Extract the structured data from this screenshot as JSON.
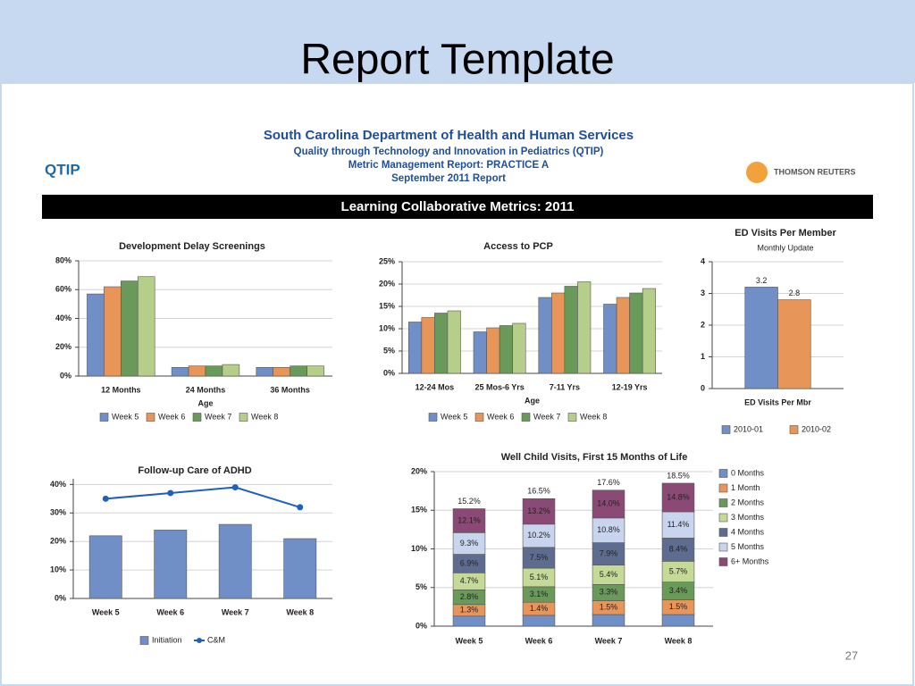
{
  "slide": {
    "title": "Report Template",
    "page_number": "27"
  },
  "report": {
    "agency": "South Carolina Department of Health and Human Services",
    "program": "Quality through Technology and Innovation in Pediatrics (QTIP)",
    "report_name": "Metric Management Report:  PRACTICE A",
    "date": "September 2011 Report",
    "left_logo": "QTIP",
    "right_logo": "THOMSON REUTERS",
    "banner": "Learning Collaborative Metrics: 2011"
  },
  "chart_data": [
    {
      "type": "bar",
      "title": "Development Delay Screenings",
      "x_label": "Age",
      "categories": [
        "12 Months",
        "24 Months",
        "36 Months"
      ],
      "series": [
        {
          "name": "Week 5",
          "color": "#6f8fc6",
          "values": [
            57,
            6,
            6
          ]
        },
        {
          "name": "Week 6",
          "color": "#e8955a",
          "values": [
            62,
            7,
            6
          ]
        },
        {
          "name": "Week 7",
          "color": "#6a9a5a",
          "values": [
            66,
            7,
            7
          ]
        },
        {
          "name": "Week 8",
          "color": "#b5cf8a",
          "values": [
            69,
            8,
            7
          ]
        }
      ],
      "ylim": [
        0,
        80
      ],
      "yticks": [
        {
          "value": 0,
          "label": "0%"
        },
        {
          "value": 20,
          "label": "20%"
        },
        {
          "value": 40,
          "label": "40%"
        },
        {
          "value": 60,
          "label": "60%"
        },
        {
          "value": 80,
          "label": "80%"
        }
      ],
      "grid": true
    },
    {
      "type": "bar",
      "title": "Access to PCP",
      "x_label": "Age",
      "categories": [
        "12-24 Mos",
        "25 Mos-6 Yrs",
        "7-11 Yrs",
        "12-19 Yrs"
      ],
      "series": [
        {
          "name": "Week 5",
          "color": "#6f8fc6",
          "values": [
            11.5,
            9.3,
            17,
            15.5
          ]
        },
        {
          "name": "Week 6",
          "color": "#e8955a",
          "values": [
            12.5,
            10.2,
            18,
            17
          ]
        },
        {
          "name": "Week 7",
          "color": "#6a9a5a",
          "values": [
            13.5,
            10.7,
            19.5,
            18
          ]
        },
        {
          "name": "Week 8",
          "color": "#b5cf8a",
          "values": [
            14,
            11.2,
            20.5,
            19
          ]
        }
      ],
      "ylim": [
        0,
        25
      ],
      "yticks": [
        {
          "value": 0,
          "label": "0%"
        },
        {
          "value": 5,
          "label": "5%"
        },
        {
          "value": 10,
          "label": "10%"
        },
        {
          "value": 15,
          "label": "15%"
        },
        {
          "value": 20,
          "label": "20%"
        },
        {
          "value": 25,
          "label": "25%"
        }
      ],
      "grid": true
    },
    {
      "type": "bar",
      "title": "ED Visits Per Member",
      "subtitle": "Monthly Update",
      "categories": [
        "ED Visits Per Mbr"
      ],
      "series": [
        {
          "name": "2010-01",
          "color": "#6f8fc6",
          "values": [
            3.2
          ]
        },
        {
          "name": "2010-02",
          "color": "#e8955a",
          "values": [
            2.8
          ]
        }
      ],
      "show_values": true,
      "ylim": [
        0,
        4
      ],
      "yticks": [
        0,
        1,
        2,
        3,
        4
      ],
      "grid": true
    },
    {
      "type": "bar",
      "title": "Follow-up Care of ADHD",
      "categories": [
        "Week 5",
        "Week 6",
        "Week 7",
        "Week 8"
      ],
      "series": [
        {
          "name": "Initiation",
          "color": "#6f8fc6",
          "values": [
            22,
            24,
            26,
            21
          ]
        },
        {
          "name": "C&M",
          "type": "line",
          "color": "#1f5fbf",
          "values": [
            35,
            37,
            39,
            32
          ]
        }
      ],
      "ylim": [
        0,
        42
      ],
      "yticks": [
        {
          "value": 0,
          "label": "0%"
        },
        {
          "value": 10,
          "label": "10%"
        },
        {
          "value": 20,
          "label": "20%"
        },
        {
          "value": 30,
          "label": "30%"
        },
        {
          "value": 40,
          "label": "40%"
        }
      ],
      "grid": true
    },
    {
      "type": "stacked",
      "title": "Well Child Visits, First 15 Months of Life",
      "categories": [
        "Week 5",
        "Week 6",
        "Week 7",
        "Week 8"
      ],
      "series": [
        {
          "name": "0 Months",
          "color": "#6f8fc6",
          "values": [
            1.3,
            1.4,
            1.5,
            1.5
          ],
          "cumulative_labels": [
            "1.3%",
            "1.4%",
            "1.5%",
            "1.5%"
          ]
        },
        {
          "name": "1 Month",
          "color": "#e8955a",
          "values": [
            1.5,
            1.7,
            1.8,
            1.9
          ],
          "cumulative_labels": [
            "2.8%",
            "3.1%",
            "3.3%",
            "3.4%"
          ]
        },
        {
          "name": "2 Months",
          "color": "#6a9a5a",
          "values": [
            1.9,
            2.0,
            2.1,
            2.3
          ],
          "cumulative_labels": [
            "4.7%",
            "5.1%",
            "5.4%",
            "5.7%"
          ]
        },
        {
          "name": "3 Months",
          "color": "#c5da96",
          "values": [
            2.2,
            2.4,
            2.5,
            2.7
          ],
          "cumulative_labels": [
            "6.9%",
            "7.5%",
            "7.9%",
            "8.4%"
          ]
        },
        {
          "name": "4 Months",
          "color": "#5e6d8f",
          "values": [
            2.4,
            2.7,
            2.9,
            3.0
          ],
          "cumulative_labels": [
            "9.3%",
            "10.2%",
            "10.8%",
            "11.4%"
          ]
        },
        {
          "name": "5 Months",
          "color": "#c9d5ee",
          "values": [
            2.8,
            3.0,
            3.2,
            3.4
          ],
          "cumulative_labels": [
            "12.1%",
            "13.2%",
            "14.0%",
            "14.8%"
          ]
        },
        {
          "name": "6+ Months",
          "color": "#8b4a76",
          "values": [
            3.1,
            3.3,
            3.6,
            3.7
          ],
          "cumulative_labels": [
            "15.2%",
            "16.5%",
            "17.6%",
            "18.5%"
          ]
        }
      ],
      "ylim": [
        0,
        20
      ],
      "yticks": [
        {
          "value": 0,
          "label": "0%"
        },
        {
          "value": 5,
          "label": "5%"
        },
        {
          "value": 10,
          "label": "10%"
        },
        {
          "value": 15,
          "label": "15%"
        },
        {
          "value": 20,
          "label": "20%"
        }
      ],
      "grid": true
    }
  ]
}
